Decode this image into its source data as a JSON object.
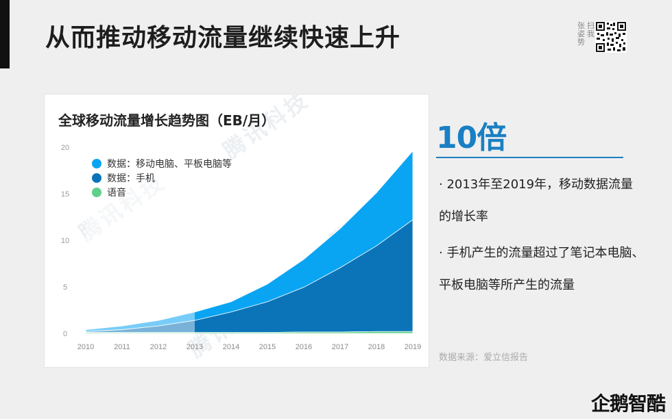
{
  "slide": {
    "title": "从而推动移动流量继续快速上升",
    "qr_label_1": "张姿势",
    "qr_label_2": "扫我",
    "watermark": "腾讯科技",
    "brand": "企鹅智酷",
    "source": "数据来源：爱立信报告"
  },
  "highlight": {
    "value": "10倍",
    "bullets": [
      "· 2013年至2019年，移动数据流量的增长率",
      "· 手机产生的流量超过了笔记本电脑、平板电脑等所产生的流量"
    ]
  },
  "colors": {
    "laptop": "#0aa5f2",
    "phone": "#0b74b8",
    "voice": "#5fd08a",
    "accent": "#1a7fc3"
  },
  "chart_data": {
    "type": "area",
    "stacked": true,
    "title": "全球移动流量增长趋势图（EB/月）",
    "x": [
      "2010",
      "2011",
      "2012",
      "2013",
      "2014",
      "2015",
      "2016",
      "2017",
      "2018",
      "2019"
    ],
    "ylim": [
      0,
      20
    ],
    "yticks": [
      0,
      5,
      10,
      15,
      20
    ],
    "legend_position": "top-left",
    "shaded_history": [
      "2010",
      "2013"
    ],
    "series": [
      {
        "name": "语音",
        "color_key": "voice",
        "values": [
          0.1,
          0.1,
          0.1,
          0.1,
          0.1,
          0.1,
          0.15,
          0.15,
          0.2,
          0.2
        ]
      },
      {
        "name": "数据：手机",
        "color_key": "phone",
        "values": [
          0.1,
          0.3,
          0.7,
          1.3,
          2.2,
          3.3,
          4.8,
          6.9,
          9.2,
          12.0
        ]
      },
      {
        "name": "数据：移动电脑、平板电脑等",
        "color_key": "laptop",
        "values": [
          0.2,
          0.4,
          0.6,
          0.9,
          1.1,
          1.9,
          3.0,
          4.2,
          5.7,
          7.4
        ]
      }
    ]
  }
}
